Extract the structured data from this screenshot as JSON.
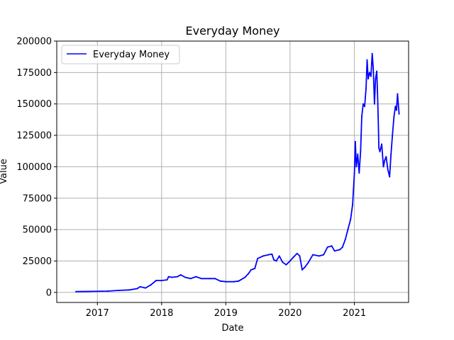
{
  "chart_data": {
    "type": "line",
    "title": "Everyday Money",
    "xlabel": "Date",
    "ylabel": "Value",
    "xlim": [
      "2016-05-15",
      "2021-11-05"
    ],
    "ylim": [
      -8000,
      200000
    ],
    "x_ticks": [
      "2017",
      "2018",
      "2019",
      "2020",
      "2021"
    ],
    "y_ticks": [
      0,
      25000,
      50000,
      75000,
      100000,
      125000,
      150000,
      175000,
      200000
    ],
    "y_tick_labels": [
      "0",
      "25000",
      "50000",
      "75000",
      "100000",
      "125000",
      "150000",
      "175000",
      "200000"
    ],
    "grid": true,
    "legend_position": "top-left",
    "series": [
      {
        "name": "Everyday Money",
        "color": "#0000ff",
        "points": [
          [
            "2016-09-01",
            600
          ],
          [
            "2016-12-01",
            800
          ],
          [
            "2017-03-01",
            1000
          ],
          [
            "2017-05-01",
            1600
          ],
          [
            "2017-07-01",
            2000
          ],
          [
            "2017-08-15",
            3000
          ],
          [
            "2017-09-01",
            4500
          ],
          [
            "2017-10-01",
            3500
          ],
          [
            "2017-11-01",
            6000
          ],
          [
            "2017-12-01",
            9500
          ],
          [
            "2018-01-01",
            9500
          ],
          [
            "2018-02-01",
            10000
          ],
          [
            "2018-02-10",
            12500
          ],
          [
            "2018-03-01",
            12000
          ],
          [
            "2018-04-01",
            12500
          ],
          [
            "2018-04-20",
            14000
          ],
          [
            "2018-05-15",
            12000
          ],
          [
            "2018-06-15",
            11000
          ],
          [
            "2018-07-15",
            12500
          ],
          [
            "2018-08-15",
            11000
          ],
          [
            "2018-10-01",
            11000
          ],
          [
            "2018-11-01",
            11000
          ],
          [
            "2018-12-01",
            9000
          ],
          [
            "2019-01-01",
            8500
          ],
          [
            "2019-02-15",
            8500
          ],
          [
            "2019-03-15",
            9000
          ],
          [
            "2019-04-20",
            12000
          ],
          [
            "2019-05-10",
            15000
          ],
          [
            "2019-05-25",
            18000
          ],
          [
            "2019-06-15",
            19000
          ],
          [
            "2019-07-01",
            27000
          ],
          [
            "2019-08-01",
            29000
          ],
          [
            "2019-09-01",
            30000
          ],
          [
            "2019-09-20",
            30500
          ],
          [
            "2019-10-01",
            26000
          ],
          [
            "2019-10-15",
            25000
          ],
          [
            "2019-11-01",
            29000
          ],
          [
            "2019-11-20",
            24000
          ],
          [
            "2019-12-10",
            22000
          ],
          [
            "2020-01-01",
            25000
          ],
          [
            "2020-01-20",
            28000
          ],
          [
            "2020-02-10",
            31000
          ],
          [
            "2020-02-25",
            29000
          ],
          [
            "2020-03-10",
            18000
          ],
          [
            "2020-03-25",
            20000
          ],
          [
            "2020-04-15",
            24000
          ],
          [
            "2020-05-10",
            30000
          ],
          [
            "2020-06-15",
            29000
          ],
          [
            "2020-07-10",
            30000
          ],
          [
            "2020-08-01",
            36000
          ],
          [
            "2020-08-25",
            37000
          ],
          [
            "2020-09-10",
            33000
          ],
          [
            "2020-10-10",
            34000
          ],
          [
            "2020-10-25",
            36000
          ],
          [
            "2020-11-10",
            42000
          ],
          [
            "2020-11-25",
            50000
          ],
          [
            "2020-12-10",
            58000
          ],
          [
            "2020-12-22",
            70000
          ],
          [
            "2021-01-01",
            95000
          ],
          [
            "2021-01-06",
            120000
          ],
          [
            "2021-01-12",
            100000
          ],
          [
            "2021-01-20",
            110000
          ],
          [
            "2021-01-28",
            95000
          ],
          [
            "2021-02-05",
            112000
          ],
          [
            "2021-02-12",
            140000
          ],
          [
            "2021-02-20",
            150000
          ],
          [
            "2021-02-28",
            148000
          ],
          [
            "2021-03-08",
            162000
          ],
          [
            "2021-03-14",
            185000
          ],
          [
            "2021-03-20",
            170000
          ],
          [
            "2021-03-28",
            175000
          ],
          [
            "2021-04-05",
            172000
          ],
          [
            "2021-04-12",
            190000
          ],
          [
            "2021-04-18",
            178000
          ],
          [
            "2021-04-25",
            150000
          ],
          [
            "2021-05-01",
            170000
          ],
          [
            "2021-05-08",
            176000
          ],
          [
            "2021-05-12",
            160000
          ],
          [
            "2021-05-16",
            140000
          ],
          [
            "2021-05-20",
            115000
          ],
          [
            "2021-05-26",
            112000
          ],
          [
            "2021-06-05",
            118000
          ],
          [
            "2021-06-15",
            100000
          ],
          [
            "2021-06-22",
            105000
          ],
          [
            "2021-06-30",
            108000
          ],
          [
            "2021-07-10",
            98000
          ],
          [
            "2021-07-20",
            92000
          ],
          [
            "2021-07-28",
            110000
          ],
          [
            "2021-08-05",
            125000
          ],
          [
            "2021-08-14",
            140000
          ],
          [
            "2021-08-22",
            148000
          ],
          [
            "2021-08-28",
            145000
          ],
          [
            "2021-09-03",
            158000
          ],
          [
            "2021-09-07",
            150000
          ],
          [
            "2021-09-12",
            142000
          ]
        ]
      }
    ]
  }
}
